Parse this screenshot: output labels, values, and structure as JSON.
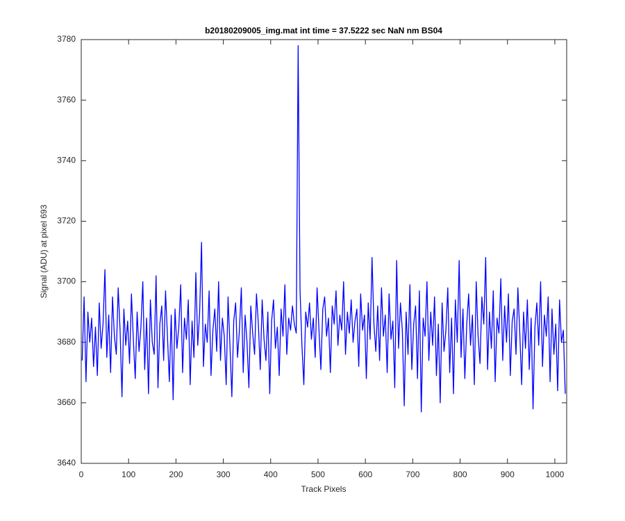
{
  "chart_data": {
    "type": "line",
    "title": "b20180209005_img.mat int time = 37.5222 sec  NaN nm BS04",
    "x_label": "Track Pixels",
    "y_label": "Signal (ADU) at pixel 693",
    "xlim": [
      0,
      1025
    ],
    "ylim": [
      3640,
      3780
    ],
    "xticks": [
      0,
      100,
      200,
      300,
      400,
      500,
      600,
      700,
      800,
      900,
      1000
    ],
    "yticks": [
      3640,
      3660,
      3680,
      3700,
      3720,
      3740,
      3760,
      3780
    ],
    "grid": false,
    "series": [
      {
        "color": "#0000ff",
        "x": [
          2,
          6,
          10,
          14,
          18,
          22,
          26,
          30,
          34,
          38,
          42,
          46,
          50,
          54,
          58,
          62,
          66,
          70,
          74,
          78,
          82,
          86,
          90,
          94,
          98,
          102,
          106,
          110,
          114,
          118,
          122,
          126,
          130,
          134,
          138,
          142,
          146,
          150,
          154,
          158,
          162,
          166,
          170,
          174,
          178,
          182,
          186,
          190,
          194,
          198,
          202,
          206,
          210,
          214,
          218,
          222,
          226,
          230,
          234,
          238,
          242,
          246,
          250,
          254,
          258,
          262,
          266,
          270,
          274,
          278,
          282,
          286,
          290,
          294,
          298,
          302,
          306,
          310,
          314,
          318,
          322,
          326,
          330,
          334,
          338,
          342,
          346,
          350,
          354,
          358,
          362,
          366,
          370,
          374,
          378,
          382,
          386,
          390,
          394,
          398,
          402,
          406,
          410,
          414,
          418,
          422,
          426,
          430,
          434,
          438,
          442,
          446,
          450,
          454,
          458,
          462,
          466,
          470,
          474,
          478,
          482,
          486,
          490,
          494,
          498,
          502,
          506,
          510,
          514,
          518,
          522,
          526,
          530,
          534,
          538,
          542,
          546,
          550,
          554,
          558,
          562,
          566,
          570,
          574,
          578,
          582,
          586,
          590,
          594,
          598,
          602,
          606,
          610,
          614,
          618,
          622,
          626,
          630,
          634,
          638,
          642,
          646,
          650,
          654,
          658,
          662,
          666,
          670,
          674,
          678,
          682,
          686,
          690,
          694,
          698,
          702,
          706,
          710,
          714,
          718,
          722,
          726,
          730,
          734,
          738,
          742,
          746,
          750,
          754,
          758,
          762,
          766,
          770,
          774,
          778,
          782,
          786,
          790,
          794,
          798,
          802,
          806,
          810,
          814,
          818,
          822,
          826,
          830,
          834,
          838,
          842,
          846,
          850,
          854,
          858,
          862,
          866,
          870,
          874,
          878,
          882,
          886,
          890,
          894,
          898,
          902,
          906,
          910,
          914,
          918,
          922,
          926,
          930,
          934,
          938,
          942,
          946,
          950,
          954,
          958,
          962,
          966,
          970,
          974,
          978,
          982,
          986,
          990,
          994,
          998,
          1002,
          1006,
          1010,
          1014,
          1018,
          1022
        ],
        "values": [
          3674,
          3695,
          3667,
          3690,
          3680,
          3688,
          3672,
          3685,
          3669,
          3693,
          3678,
          3686,
          3704,
          3675,
          3689,
          3670,
          3695,
          3682,
          3676,
          3698,
          3684,
          3662,
          3691,
          3679,
          3687,
          3673,
          3696,
          3681,
          3668,
          3690,
          3677,
          3685,
          3700,
          3671,
          3688,
          3663,
          3694,
          3680,
          3676,
          3702,
          3665,
          3686,
          3692,
          3674,
          3697,
          3682,
          3667,
          3689,
          3661,
          3691,
          3678,
          3685,
          3699,
          3670,
          3688,
          3681,
          3694,
          3666,
          3687,
          3675,
          3703,
          3679,
          3690,
          3713,
          3672,
          3686,
          3680,
          3697,
          3669,
          3684,
          3691,
          3677,
          3700,
          3674,
          3688,
          3682,
          3666,
          3695,
          3679,
          3662,
          3687,
          3693,
          3675,
          3684,
          3698,
          3670,
          3689,
          3680,
          3665,
          3692,
          3683,
          3676,
          3696,
          3686,
          3671,
          3694,
          3681,
          3674,
          3690,
          3663,
          3687,
          3694,
          3678,
          3685,
          3669,
          3691,
          3682,
          3699,
          3676,
          3688,
          3684,
          3692,
          3686,
          3683,
          3778,
          3697,
          3679,
          3666,
          3690,
          3685,
          3693,
          3681,
          3688,
          3675,
          3698,
          3684,
          3671,
          3691,
          3695,
          3682,
          3688,
          3670,
          3692,
          3686,
          3697,
          3679,
          3689,
          3684,
          3700,
          3676,
          3690,
          3683,
          3694,
          3680,
          3687,
          3691,
          3672,
          3696,
          3684,
          3689,
          3668,
          3693,
          3681,
          3708,
          3686,
          3677,
          3692,
          3674,
          3698,
          3682,
          3689,
          3670,
          3696,
          3681,
          3687,
          3665,
          3707,
          3678,
          3693,
          3684,
          3659,
          3690,
          3676,
          3699,
          3671,
          3686,
          3692,
          3668,
          3697,
          3657,
          3688,
          3682,
          3700,
          3674,
          3690,
          3679,
          3695,
          3669,
          3686,
          3660,
          3693,
          3677,
          3684,
          3698,
          3670,
          3688,
          3663,
          3694,
          3680,
          3707,
          3675,
          3691,
          3668,
          3686,
          3696,
          3679,
          3689,
          3666,
          3700,
          3682,
          3673,
          3695,
          3686,
          3708,
          3671,
          3690,
          3678,
          3697,
          3667,
          3688,
          3683,
          3701,
          3674,
          3692,
          3680,
          3696,
          3669,
          3687,
          3691,
          3676,
          3698,
          3683,
          3666,
          3690,
          3678,
          3694,
          3671,
          3688,
          3658,
          3685,
          3693,
          3679,
          3700,
          3672,
          3689,
          3682,
          3695,
          3667,
          3691,
          3676,
          3686,
          3664,
          3694,
          3680,
          3684,
          3663
        ]
      }
    ]
  }
}
